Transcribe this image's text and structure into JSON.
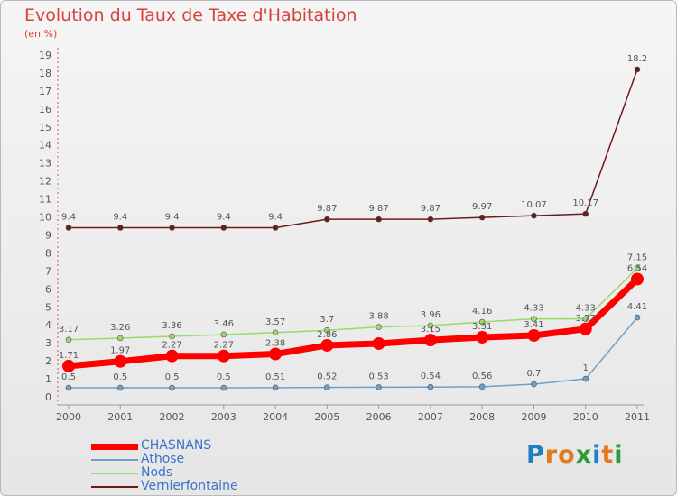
{
  "title": "Evolution du Taux de Taxe d'Habitation",
  "subtitle": "(en %)",
  "logo": {
    "letters": [
      "P",
      "r",
      "o",
      "x",
      "i",
      "t",
      "i"
    ],
    "colors": [
      "#1f7fc4",
      "#e27a1d",
      "#e27a1d",
      "#2a9c3a",
      "#1f7fc4",
      "#e27a1d",
      "#2a9c3a"
    ]
  },
  "chart_data": {
    "type": "line",
    "title": "Evolution du Taux de Taxe d'Habitation",
    "ylabel": "(en %)",
    "xlabel": "",
    "x": [
      "2000",
      "2001",
      "2002",
      "2003",
      "2004",
      "2005",
      "2006",
      "2007",
      "2008",
      "2009",
      "2010",
      "2011"
    ],
    "ylim": [
      0,
      19
    ],
    "yticks": [
      "0",
      "1",
      "2",
      "3",
      "4",
      "5",
      "6",
      "7",
      "8",
      "9",
      "10",
      "11",
      "12",
      "13",
      "14",
      "15",
      "16",
      "17",
      "18",
      "19"
    ],
    "grid": false,
    "legend": "bottom-left",
    "series": [
      {
        "name": "CHASNANS",
        "color": "#ff0000",
        "width": 7,
        "marker": 7,
        "values": [
          1.71,
          1.97,
          2.27,
          2.27,
          2.38,
          2.86,
          2.96,
          3.15,
          3.31,
          3.41,
          3.77,
          6.54
        ],
        "labels": [
          "1.71",
          "1.97",
          "2.27",
          "2.27",
          "2.38",
          "2.86",
          "",
          "3.15",
          "3.31",
          "3.41",
          "3.77",
          "6.54"
        ]
      },
      {
        "name": "Athose",
        "color": "#6e9fc9",
        "width": 1.5,
        "marker": 3,
        "values": [
          0.5,
          0.5,
          0.5,
          0.5,
          0.51,
          0.52,
          0.53,
          0.54,
          0.56,
          0.7,
          1,
          4.41
        ],
        "labels": [
          "0.5",
          "0.5",
          "0.5",
          "0.5",
          "0.51",
          "0.52",
          "0.53",
          "0.54",
          "0.56",
          "0.7",
          "1",
          "4.41"
        ]
      },
      {
        "name": "Nods",
        "color": "#9ad96a",
        "width": 1.5,
        "marker": 3,
        "values": [
          3.17,
          3.26,
          3.36,
          3.46,
          3.57,
          3.7,
          3.88,
          3.96,
          4.16,
          4.33,
          4.33,
          7.15
        ],
        "labels": [
          "3.17",
          "3.26",
          "3.36",
          "3.46",
          "3.57",
          "3.7",
          "3.88",
          "3.96",
          "4.16",
          "4.33",
          "4.33",
          "7.15"
        ]
      },
      {
        "name": "Vernierfontaine",
        "color": "#6b1b1b",
        "width": 1.5,
        "marker": 3,
        "values": [
          9.4,
          9.4,
          9.4,
          9.4,
          9.4,
          9.87,
          9.87,
          9.87,
          9.97,
          10.07,
          10.17,
          18.2
        ],
        "labels": [
          "9.4",
          "9.4",
          "9.4",
          "9.4",
          "9.4",
          "9.87",
          "9.87",
          "9.87",
          "9.97",
          "10.07",
          "10.17",
          "18.2"
        ]
      }
    ]
  }
}
